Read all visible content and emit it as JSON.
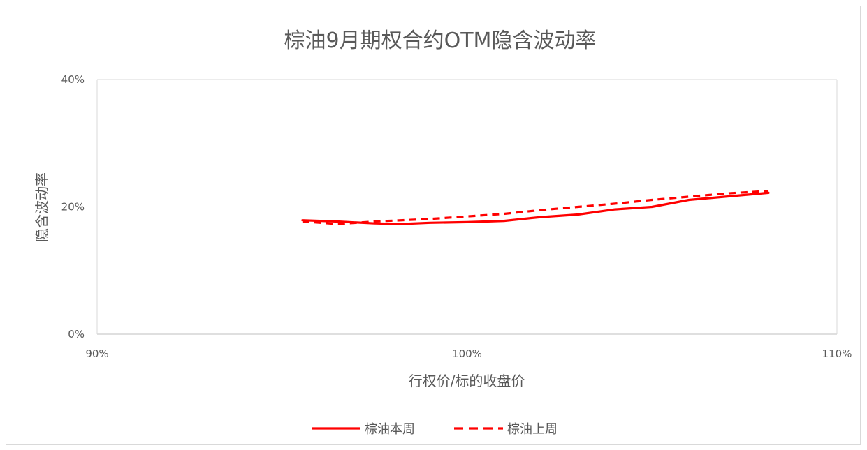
{
  "chart_data": {
    "type": "line",
    "title": "棕油9月期权合约OTM隐含波动率",
    "xlabel": "行权价/标的收盘价",
    "ylabel": "隐含波动率",
    "xlim": [
      0.9,
      1.1
    ],
    "ylim": [
      0,
      0.4
    ],
    "x_ticks": [
      {
        "value": 0.9,
        "label": "90%"
      },
      {
        "value": 1.0,
        "label": "100%"
      },
      {
        "value": 1.1,
        "label": "110%"
      }
    ],
    "y_ticks": [
      {
        "value": 0.0,
        "label": "0%"
      },
      {
        "value": 0.2,
        "label": "20%"
      },
      {
        "value": 0.4,
        "label": "40%"
      }
    ],
    "grid": true,
    "legend_position": "bottom",
    "series": [
      {
        "name": "棕油本周",
        "color": "#ff0000",
        "dash": "solid",
        "points": [
          [
            0.9555,
            0.179
          ],
          [
            0.965,
            0.177
          ],
          [
            0.975,
            0.174
          ],
          [
            0.982,
            0.173
          ],
          [
            0.99,
            0.175
          ],
          [
            1.0,
            0.176
          ],
          [
            1.01,
            0.178
          ],
          [
            1.02,
            0.184
          ],
          [
            1.03,
            0.188
          ],
          [
            1.04,
            0.196
          ],
          [
            1.05,
            0.2
          ],
          [
            1.06,
            0.211
          ],
          [
            1.0815,
            0.222
          ]
        ]
      },
      {
        "name": "棕油上周",
        "color": "#ff0000",
        "dash": "dashed",
        "points": [
          [
            0.9555,
            0.177
          ],
          [
            0.965,
            0.173
          ],
          [
            0.975,
            0.177
          ],
          [
            0.99,
            0.181
          ],
          [
            1.0,
            0.185
          ],
          [
            1.01,
            0.189
          ],
          [
            1.02,
            0.195
          ],
          [
            1.03,
            0.2
          ],
          [
            1.04,
            0.205
          ],
          [
            1.05,
            0.211
          ],
          [
            1.06,
            0.216
          ],
          [
            1.07,
            0.221
          ],
          [
            1.0815,
            0.225
          ]
        ]
      }
    ]
  }
}
